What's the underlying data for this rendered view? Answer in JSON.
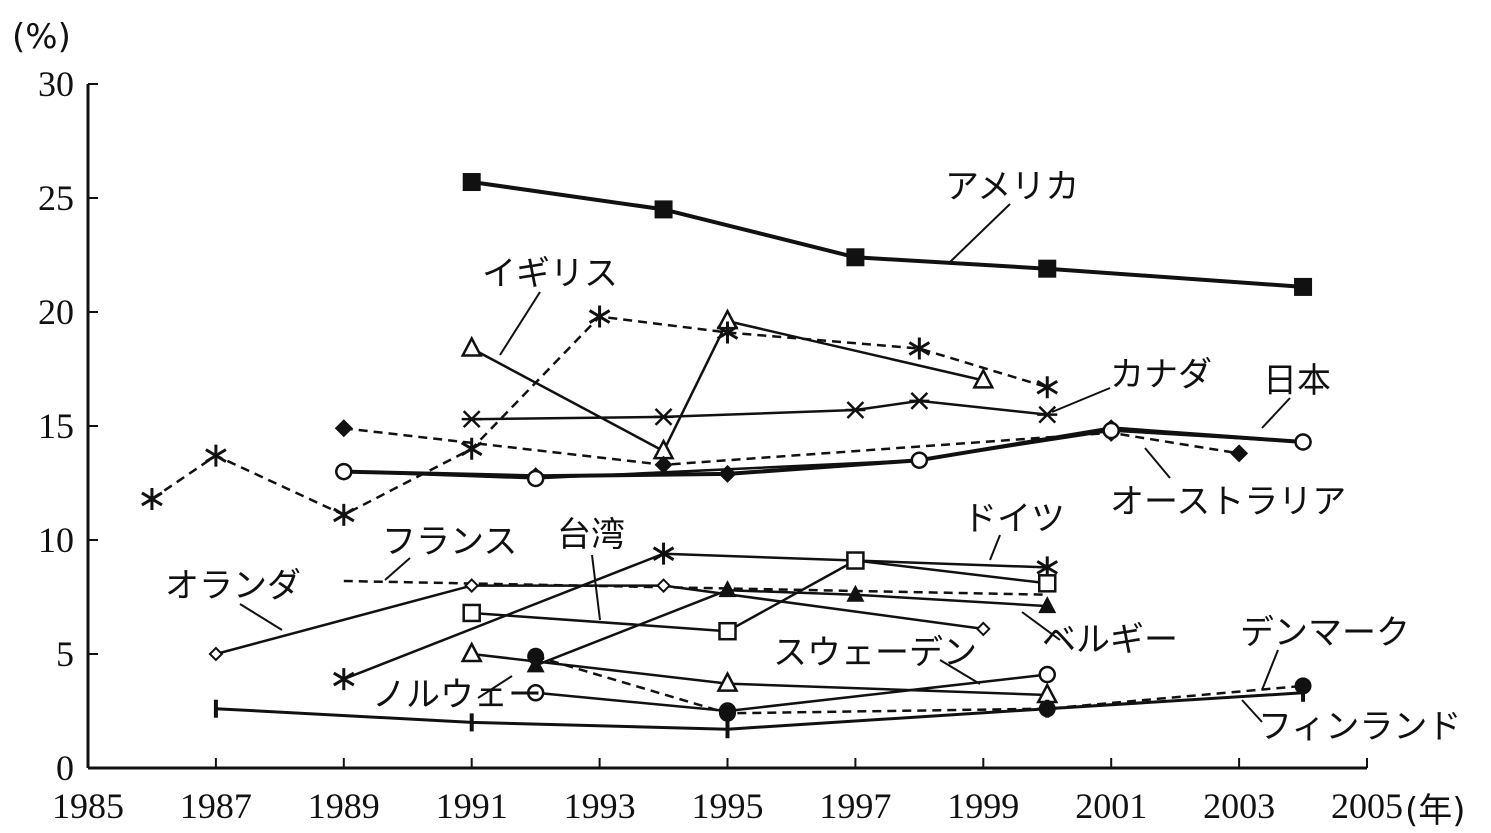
{
  "chart_data": {
    "type": "line",
    "y_unit": "(%)",
    "x_unit": "(年)",
    "xlim": [
      1985,
      2005
    ],
    "ylim": [
      0,
      30
    ],
    "x_ticks": [
      1985,
      1987,
      1989,
      1991,
      1993,
      1995,
      1997,
      1999,
      2001,
      2003,
      2005
    ],
    "y_ticks": [
      0,
      5,
      10,
      15,
      20,
      25,
      30
    ],
    "grid": false,
    "series": [
      {
        "name": "アメリカ",
        "marker": "square-filled",
        "dash": "solid",
        "width": 4,
        "points": [
          [
            1991,
            25.7
          ],
          [
            1994,
            24.5
          ],
          [
            1997,
            22.4
          ],
          [
            2000,
            21.9
          ],
          [
            2004,
            21.1
          ]
        ]
      },
      {
        "name": "イギリス",
        "marker": "triangle-open",
        "dash": "solid",
        "width": 2.5,
        "points": [
          [
            1991,
            18.4
          ],
          [
            1994,
            13.9
          ],
          [
            1995,
            19.6
          ],
          [
            1999,
            17.0
          ]
        ]
      },
      {
        "name": "",
        "marker": "asterisk",
        "dash": "dashed",
        "width": 2.5,
        "points": [
          [
            1986,
            11.8
          ],
          [
            1987,
            13.7
          ],
          [
            1989,
            11.1
          ],
          [
            1991,
            14.0
          ],
          [
            1993,
            19.8
          ],
          [
            1995,
            19.1
          ],
          [
            1998,
            18.4
          ],
          [
            2000,
            16.7
          ]
        ]
      },
      {
        "name": "カナダ",
        "marker": "cross",
        "dash": "solid",
        "width": 2.5,
        "points": [
          [
            1991,
            15.3
          ],
          [
            1994,
            15.4
          ],
          [
            1997,
            15.7
          ],
          [
            1998,
            16.1
          ],
          [
            2000,
            15.5
          ]
        ]
      },
      {
        "name": "日本",
        "marker": "diamond-filled",
        "dash": "solid",
        "width": 4,
        "points": [
          [
            1989,
            13.0
          ],
          [
            1992,
            12.8
          ],
          [
            1995,
            12.9
          ],
          [
            1998,
            13.5
          ],
          [
            2001,
            14.9
          ],
          [
            2004,
            14.3
          ]
        ]
      },
      {
        "name": "オーストラリア",
        "marker": "diamond-filled",
        "dash": "dashed",
        "width": 2.5,
        "points": [
          [
            1989,
            14.9
          ],
          [
            1994,
            13.3
          ],
          [
            2001,
            14.7
          ],
          [
            2003,
            13.8
          ]
        ]
      },
      {
        "name": "",
        "marker": "circle-open",
        "dash": "solid",
        "width": 2.5,
        "points": [
          [
            1989,
            13.0
          ],
          [
            1992,
            12.7
          ],
          [
            1998,
            13.5
          ],
          [
            2001,
            14.8
          ],
          [
            2004,
            14.3
          ]
        ]
      },
      {
        "name": "ドイツ",
        "marker": "asterisk",
        "dash": "solid",
        "width": 2.5,
        "points": [
          [
            1989,
            3.9
          ],
          [
            1994,
            9.4
          ],
          [
            2000,
            8.8
          ]
        ]
      },
      {
        "name": "フランス",
        "marker": "none",
        "dash": "dashed",
        "width": 2.5,
        "points": [
          [
            1989,
            8.2
          ],
          [
            2000,
            7.6
          ]
        ]
      },
      {
        "name": "オランダ",
        "marker": "diamond-open",
        "dash": "solid",
        "width": 2.5,
        "points": [
          [
            1987,
            5.0
          ],
          [
            1991,
            8.0
          ],
          [
            1994,
            8.0
          ],
          [
            1999,
            6.1
          ]
        ]
      },
      {
        "name": "台湾",
        "marker": "square-open",
        "dash": "solid",
        "width": 2.5,
        "points": [
          [
            1991,
            6.8
          ],
          [
            1995,
            6.0
          ],
          [
            1997,
            9.1
          ],
          [
            2000,
            8.1
          ]
        ]
      },
      {
        "name": "ベルギー",
        "marker": "triangle-filled",
        "dash": "solid",
        "width": 2.5,
        "points": [
          [
            1992,
            4.5
          ],
          [
            1995,
            7.8
          ],
          [
            1997,
            7.6
          ],
          [
            2000,
            7.1
          ]
        ]
      },
      {
        "name": "スウェーデン",
        "marker": "triangle-open",
        "dash": "solid",
        "width": 2.5,
        "points": [
          [
            1991,
            5.0
          ],
          [
            1995,
            3.7
          ],
          [
            2000,
            3.2
          ]
        ]
      },
      {
        "name": "ノルウェー",
        "marker": "circle-open",
        "dash": "solid",
        "width": 2.5,
        "points": [
          [
            1992,
            3.3
          ],
          [
            1995,
            2.5
          ],
          [
            2000,
            4.1
          ]
        ]
      },
      {
        "name": "デンマーク",
        "marker": "circle-filled",
        "dash": "dashed",
        "width": 2.5,
        "points": [
          [
            1992,
            4.9
          ],
          [
            1995,
            2.4
          ],
          [
            2000,
            2.6
          ],
          [
            2004,
            3.6
          ]
        ]
      },
      {
        "name": "フィンランド",
        "marker": "tick",
        "dash": "solid",
        "width": 3,
        "points": [
          [
            1987,
            2.6
          ],
          [
            1991,
            2.0
          ],
          [
            1995,
            1.7
          ],
          [
            2000,
            2.6
          ],
          [
            2004,
            3.3
          ]
        ]
      }
    ]
  }
}
